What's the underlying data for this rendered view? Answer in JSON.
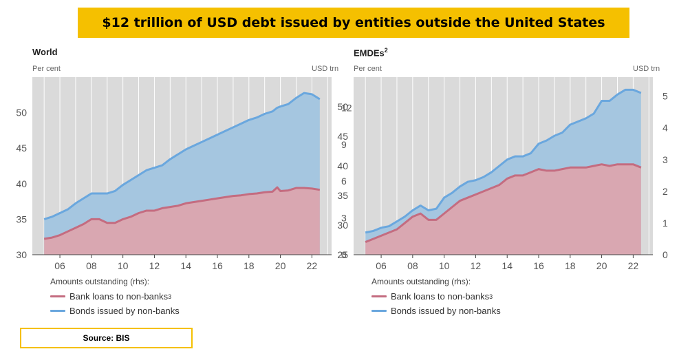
{
  "header": {
    "title": "$12 trillion of USD debt issued by entities outside the United States"
  },
  "colors": {
    "banner": "#f5c000",
    "bank_fill": "#d9a7b1",
    "bank_line": "#c46c80",
    "bond_fill": "#a5c6e0",
    "bond_line": "#6aa7de",
    "plot_bg": "#dadada"
  },
  "chart_data": [
    {
      "type": "area",
      "title": "World",
      "ylabel_left": "Per cent",
      "ylabel_right": "USD trn",
      "x_ticks": [
        "06",
        "08",
        "10",
        "12",
        "14",
        "16",
        "18",
        "20",
        "22"
      ],
      "left_ticks": [
        "30",
        "35",
        "40",
        "45",
        "50"
      ],
      "right_ticks": [
        "0",
        "3",
        "6",
        "9",
        "12"
      ],
      "left_ylim": [
        30,
        55
      ],
      "right_ylim": [
        0,
        14.5
      ],
      "grid": true,
      "legend": {
        "heading": "Amounts outstanding (rhs):",
        "position": "bottom-left"
      },
      "x": [
        2005.0,
        2005.5,
        2006.0,
        2006.5,
        2007.0,
        2007.5,
        2008.0,
        2008.5,
        2009.0,
        2009.5,
        2010.0,
        2010.5,
        2011.0,
        2011.5,
        2012.0,
        2012.5,
        2013.0,
        2013.5,
        2014.0,
        2014.5,
        2015.0,
        2015.5,
        2016.0,
        2016.5,
        2017.0,
        2017.5,
        2018.0,
        2018.5,
        2019.0,
        2019.5,
        2019.8,
        2020.0,
        2020.5,
        2021.0,
        2021.5,
        2022.0,
        2022.5
      ],
      "series": [
        {
          "name": "Bank loans to non-banks",
          "note": "3",
          "key": "bank",
          "values": [
            1.3,
            1.4,
            1.6,
            1.9,
            2.2,
            2.5,
            2.9,
            2.9,
            2.6,
            2.6,
            2.9,
            3.1,
            3.4,
            3.6,
            3.6,
            3.8,
            3.9,
            4.0,
            4.2,
            4.3,
            4.4,
            4.5,
            4.6,
            4.7,
            4.8,
            4.85,
            4.95,
            5.0,
            5.1,
            5.15,
            5.5,
            5.2,
            5.25,
            5.45,
            5.45,
            5.4,
            5.3
          ]
        },
        {
          "name": "Bonds issued by non-banks",
          "key": "bonds",
          "values": [
            2.9,
            3.1,
            3.4,
            3.7,
            4.2,
            4.6,
            5.0,
            5.0,
            5.0,
            5.2,
            5.7,
            6.1,
            6.5,
            6.9,
            7.1,
            7.3,
            7.8,
            8.2,
            8.6,
            8.9,
            9.2,
            9.5,
            9.8,
            10.1,
            10.4,
            10.7,
            11.0,
            11.2,
            11.5,
            11.7,
            12.0,
            12.1,
            12.3,
            12.8,
            13.2,
            13.1,
            12.7
          ]
        }
      ]
    },
    {
      "type": "area",
      "title": "EMDEs",
      "title_note": "2",
      "ylabel_left": "Per cent",
      "ylabel_right": "USD trn",
      "x_ticks": [
        "06",
        "08",
        "10",
        "12",
        "14",
        "16",
        "18",
        "20",
        "22"
      ],
      "left_ticks": [
        "25",
        "30",
        "35",
        "40",
        "45",
        "50"
      ],
      "right_ticks": [
        "0",
        "1",
        "2",
        "3",
        "4",
        "5"
      ],
      "left_ylim": [
        25,
        55
      ],
      "right_ylim": [
        0,
        5.6
      ],
      "grid": true,
      "legend": {
        "heading": "Amounts outstanding (rhs):",
        "position": "bottom-left"
      },
      "x": [
        2005.0,
        2005.5,
        2006.0,
        2006.5,
        2007.0,
        2007.5,
        2008.0,
        2008.5,
        2009.0,
        2009.5,
        2010.0,
        2010.5,
        2011.0,
        2011.5,
        2012.0,
        2012.5,
        2013.0,
        2013.5,
        2014.0,
        2014.5,
        2015.0,
        2015.5,
        2016.0,
        2016.5,
        2017.0,
        2017.5,
        2018.0,
        2018.5,
        2019.0,
        2019.5,
        2020.0,
        2020.5,
        2021.0,
        2021.5,
        2022.0,
        2022.5
      ],
      "series": [
        {
          "name": "Bank loans to non-banks",
          "note": "3",
          "key": "bank",
          "values": [
            0.4,
            0.5,
            0.6,
            0.7,
            0.8,
            1.0,
            1.2,
            1.3,
            1.1,
            1.1,
            1.3,
            1.5,
            1.7,
            1.8,
            1.9,
            2.0,
            2.1,
            2.2,
            2.4,
            2.5,
            2.5,
            2.6,
            2.7,
            2.65,
            2.65,
            2.7,
            2.75,
            2.75,
            2.75,
            2.8,
            2.85,
            2.8,
            2.85,
            2.85,
            2.85,
            2.75
          ]
        },
        {
          "name": "Bonds issued by non-banks",
          "key": "bonds",
          "values": [
            0.7,
            0.75,
            0.85,
            0.9,
            1.05,
            1.2,
            1.4,
            1.55,
            1.4,
            1.45,
            1.8,
            1.95,
            2.15,
            2.3,
            2.35,
            2.45,
            2.6,
            2.8,
            3.0,
            3.1,
            3.1,
            3.2,
            3.5,
            3.6,
            3.75,
            3.85,
            4.1,
            4.2,
            4.3,
            4.45,
            4.85,
            4.85,
            5.05,
            5.2,
            5.2,
            5.1
          ]
        }
      ]
    }
  ],
  "source": {
    "label": "Source: BIS"
  }
}
